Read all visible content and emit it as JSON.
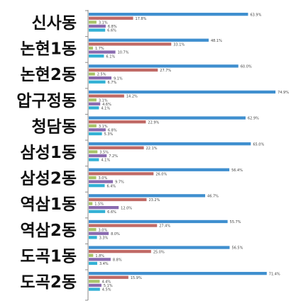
{
  "chart_data": {
    "type": "bar",
    "orientation": "horizontal",
    "categories": [
      "신사동",
      "논현1동",
      "논현2동",
      "압구정동",
      "청담동",
      "삼성1동",
      "삼성2동",
      "역삼1동",
      "역삼2동",
      "도곡1동",
      "도곡2동"
    ],
    "series": [
      {
        "color": "#3f8fcf",
        "values": [
          63.9,
          48.1,
          60.0,
          74.9,
          62.9,
          65.0,
          56.4,
          46.7,
          55.7,
          56.5,
          71.4
        ]
      },
      {
        "color": "#c06a66",
        "values": [
          17.8,
          33.1,
          27.7,
          14.2,
          22.9,
          22.1,
          26.0,
          23.2,
          27.4,
          25.0,
          15.9
        ]
      },
      {
        "color": "#a9c46a",
        "values": [
          3.1,
          1.7,
          2.5,
          3.1,
          3.1,
          3.5,
          3.0,
          1.5,
          3.0,
          1.8,
          4.4
        ]
      },
      {
        "color": "#8a6bb0",
        "values": [
          6.8,
          10.7,
          9.1,
          4.6,
          6.8,
          7.2,
          9.7,
          12.0,
          8.0,
          8.8,
          5.1
        ]
      },
      {
        "color": "#33b1d5",
        "values": [
          6.6,
          6.1,
          6.7,
          4.1,
          5.3,
          4.1,
          6.4,
          6.6,
          3.3,
          3.4,
          4.5
        ]
      }
    ],
    "value_labels": [
      [
        "63.9%",
        "17.8%",
        "3.1%",
        "6.8%",
        "6.6%"
      ],
      [
        "48.1%",
        "33.1%",
        "1.7%",
        "10.7%",
        "6.1%"
      ],
      [
        "60.0%",
        "27.7%",
        "2.5%",
        "9.1%",
        "6.7%"
      ],
      [
        "74.9%",
        "14.2%",
        "3.1%",
        "4.6%",
        "4.1%"
      ],
      [
        "62.9%",
        "22.9%",
        "3.1%",
        "6.8%",
        "5.3%"
      ],
      [
        "65.0%",
        "22.1%",
        "3.5%",
        "7.2%",
        "4.1%"
      ],
      [
        "56.4%",
        "26.0%",
        "3.0%",
        "9.7%",
        "6.4%"
      ],
      [
        "46.7%",
        "23.2%",
        "1.5%",
        "12.0%",
        "6.6%"
      ],
      [
        "55.7%",
        "27.4%",
        "3.0%",
        "8.0%",
        "3.3%"
      ],
      [
        "56.5%",
        "25.0%",
        "1.8%",
        "8.8%",
        "3.4%"
      ],
      [
        "71.4%",
        "15.9%",
        "4.4%",
        "5.1%",
        "4.5%"
      ]
    ],
    "xlim": [
      0,
      80
    ],
    "grid": false,
    "legend": "none",
    "title": "",
    "xlabel": "",
    "ylabel": ""
  }
}
